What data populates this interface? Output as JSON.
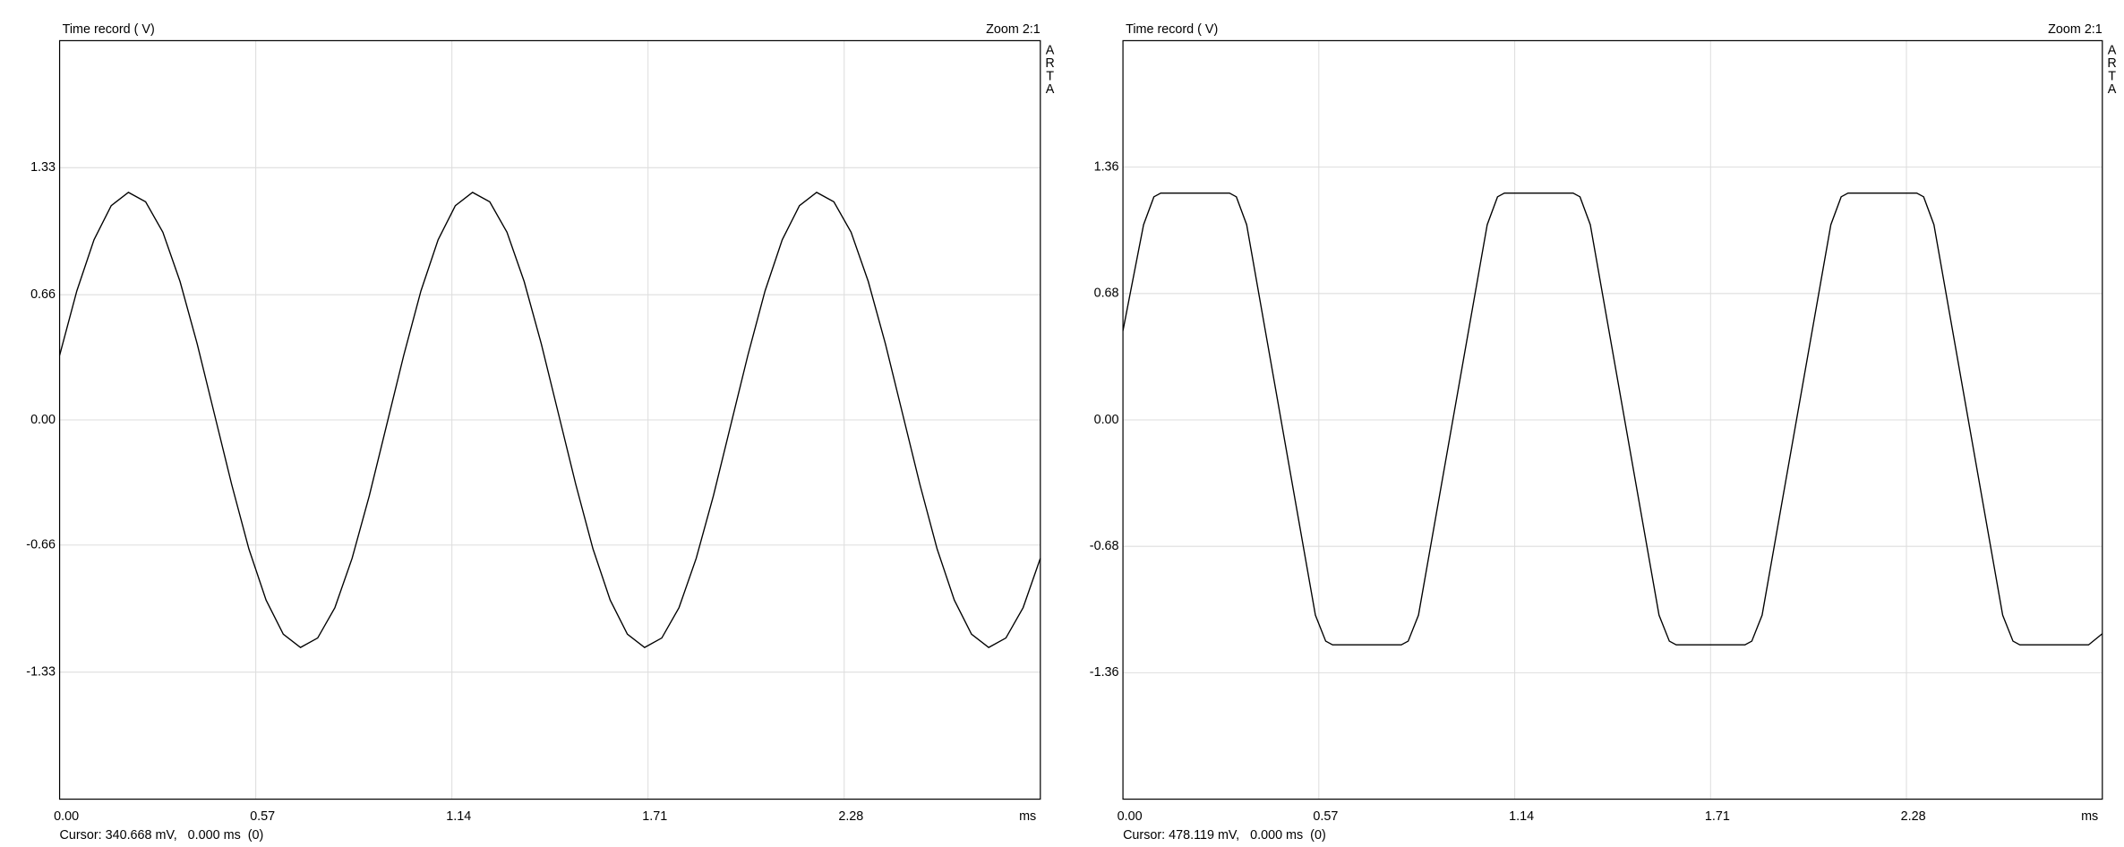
{
  "chart_data": [
    {
      "type": "line",
      "title": "Time record ( V)",
      "zoom": "Zoom 2:1",
      "watermark": "ARTA",
      "xlabel": "ms",
      "cursor": "Cursor: 340.668 mV,   0.000 ms  (0)",
      "color": "#000000",
      "grid": true,
      "xlim": [
        0,
        2.85
      ],
      "xticks": [
        {
          "value": 0,
          "label": "0.00"
        },
        0.57,
        1.14,
        1.71,
        2.28
      ],
      "ylim": [
        -2,
        2
      ],
      "yticks": [
        1.33,
        0.66,
        {
          "value": 0,
          "label": "0.00"
        },
        -0.66,
        -1.33
      ],
      "x": [
        0,
        0.05,
        0.1,
        0.15,
        0.2,
        0.25,
        0.3,
        0.35,
        0.4,
        0.45,
        0.5,
        0.55,
        0.6,
        0.65,
        0.7,
        0.75,
        0.8,
        0.85,
        0.9,
        0.95,
        1,
        1.05,
        1.1,
        1.15,
        1.2,
        1.25,
        1.3,
        1.35,
        1.4,
        1.45,
        1.5,
        1.55,
        1.6,
        1.65,
        1.7,
        1.75,
        1.8,
        1.85,
        1.9,
        1.95,
        2,
        2.05,
        2.1,
        2.15,
        2.2,
        2.25,
        2.3,
        2.35,
        2.4,
        2.45,
        2.5,
        2.55,
        2.6,
        2.65,
        2.7,
        2.75,
        2.8,
        2.85
      ],
      "values": [
        0.34,
        0.68,
        0.95,
        1.13,
        1.2,
        1.15,
        0.99,
        0.73,
        0.4,
        0.03,
        -0.34,
        -0.68,
        -0.95,
        -1.13,
        -1.2,
        -1.15,
        -0.99,
        -0.73,
        -0.4,
        -0.03,
        0.34,
        0.68,
        0.95,
        1.13,
        1.2,
        1.15,
        0.99,
        0.73,
        0.4,
        0.03,
        -0.34,
        -0.68,
        -0.95,
        -1.13,
        -1.2,
        -1.15,
        -0.99,
        -0.73,
        -0.4,
        -0.03,
        0.34,
        0.68,
        0.95,
        1.13,
        1.2,
        1.15,
        0.99,
        0.73,
        0.4,
        0.03,
        -0.34,
        -0.68,
        -0.95,
        -1.13,
        -1.2,
        -1.15,
        -0.99,
        -0.73
      ]
    },
    {
      "type": "line",
      "title": "Time record ( V)",
      "zoom": "Zoom 2:1",
      "watermark": "ARTA",
      "xlabel": "ms",
      "cursor": "Cursor: 478.119 mV,   0.000 ms  (0)",
      "color": "#000000",
      "grid": true,
      "xlim": [
        0,
        2.85
      ],
      "xticks": [
        {
          "value": 0,
          "label": "0.00"
        },
        0.57,
        1.14,
        1.71,
        2.28
      ],
      "ylim": [
        -2.04,
        2.04
      ],
      "yticks": [
        1.36,
        0.68,
        {
          "value": 0,
          "label": "0.00"
        },
        -0.68,
        -1.36
      ],
      "x": [
        0,
        0.06,
        0.09,
        0.11,
        0.31,
        0.33,
        0.36,
        0.56,
        0.59,
        0.61,
        0.81,
        0.83,
        0.86,
        1.06,
        1.09,
        1.11,
        1.31,
        1.33,
        1.36,
        1.56,
        1.59,
        1.61,
        1.81,
        1.83,
        1.86,
        2.06,
        2.09,
        2.11,
        2.31,
        2.33,
        2.36,
        2.56,
        2.59,
        2.61,
        2.81,
        2.85
      ],
      "values": [
        0.48,
        1.05,
        1.2,
        1.22,
        1.22,
        1.2,
        1.05,
        -1.05,
        -1.19,
        -1.21,
        -1.21,
        -1.19,
        -1.05,
        1.05,
        1.2,
        1.22,
        1.22,
        1.2,
        1.05,
        -1.05,
        -1.19,
        -1.21,
        -1.21,
        -1.19,
        -1.05,
        1.05,
        1.2,
        1.22,
        1.22,
        1.2,
        1.05,
        -1.05,
        -1.19,
        -1.21,
        -1.21,
        -1.15
      ]
    }
  ]
}
